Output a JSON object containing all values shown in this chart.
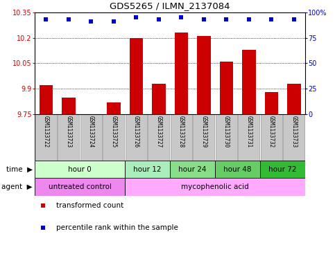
{
  "title": "GDS5265 / ILMN_2137084",
  "samples": [
    "GSM1133722",
    "GSM1133723",
    "GSM1133724",
    "GSM1133725",
    "GSM1133726",
    "GSM1133727",
    "GSM1133728",
    "GSM1133729",
    "GSM1133730",
    "GSM1133731",
    "GSM1133732",
    "GSM1133733"
  ],
  "transformed_count": [
    9.92,
    9.85,
    9.75,
    9.82,
    10.2,
    9.93,
    10.23,
    10.21,
    10.06,
    10.13,
    9.88,
    9.93
  ],
  "percentile_rank": [
    93,
    93,
    91,
    91,
    95,
    93,
    95,
    93,
    93,
    93,
    93,
    93
  ],
  "ylim_left": [
    9.75,
    10.35
  ],
  "ylim_right": [
    0,
    100
  ],
  "yticks_left": [
    9.75,
    9.9,
    10.05,
    10.2,
    10.35
  ],
  "yticks_right": [
    0,
    25,
    50,
    75,
    100
  ],
  "ytick_labels_left": [
    "9.75",
    "9.9",
    "10.05",
    "10.2",
    "10.35"
  ],
  "ytick_labels_right": [
    "0",
    "25",
    "50",
    "75",
    "100%"
  ],
  "bar_color": "#cc0000",
  "dot_color": "#0000cc",
  "bar_baseline": 9.75,
  "time_groups": [
    {
      "label": "hour 0",
      "start": 0,
      "end": 4,
      "color": "#ccffcc"
    },
    {
      "label": "hour 12",
      "start": 4,
      "end": 6,
      "color": "#aaeebb"
    },
    {
      "label": "hour 24",
      "start": 6,
      "end": 8,
      "color": "#88dd88"
    },
    {
      "label": "hour 48",
      "start": 8,
      "end": 10,
      "color": "#66cc66"
    },
    {
      "label": "hour 72",
      "start": 10,
      "end": 12,
      "color": "#33bb33"
    }
  ],
  "agent_groups": [
    {
      "label": "untreated control",
      "start": 0,
      "end": 4,
      "color": "#ee88ee"
    },
    {
      "label": "mycophenolic acid",
      "start": 4,
      "end": 12,
      "color": "#ffaaff"
    }
  ],
  "sample_bg_color": "#c8c8c8",
  "sample_border_color": "#999999",
  "legend_items": [
    {
      "color": "#cc0000",
      "label": "transformed count"
    },
    {
      "color": "#0000cc",
      "label": "percentile rank within the sample"
    }
  ],
  "left_tick_color": "#cc0000",
  "right_tick_color": "#0000cc"
}
